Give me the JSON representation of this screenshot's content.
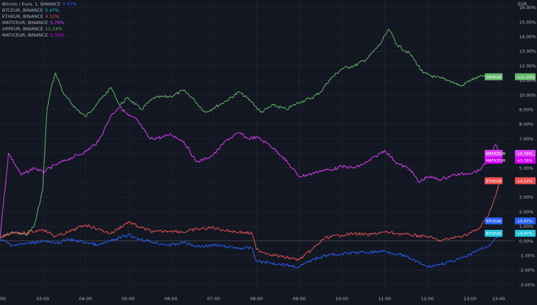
{
  "legend": [
    {
      "label": "Bitcoin / Euro, 1, BINANCE",
      "value": "0.47%",
      "color": "#2962ff"
    },
    {
      "label": "BTCEUR, BINANCE",
      "value": "0.47%",
      "color": "#26c6da"
    },
    {
      "label": "ETHEUR, BINANCE",
      "value": "4.12%",
      "color": "#ef5350"
    },
    {
      "label": "MATICEUR, BINANCE",
      "value": "5.76%",
      "color": "#e040fb"
    },
    {
      "label": "XRPEUR, BINANCE",
      "value": "11.24%",
      "color": "#66bb6a"
    },
    {
      "label": "MATICEUR, BINANCE",
      "value": "5.76%",
      "color": "#d500f9"
    }
  ],
  "currency_label": "EUR",
  "chart_data": {
    "type": "line",
    "y_unit": "%",
    "ylim": [
      -3.5,
      16.5
    ],
    "y_ticks": [
      "16.00%",
      "15.00%",
      "14.00%",
      "13.00%",
      "12.00%",
      "11.00%",
      "10.00%",
      "9.00%",
      "8.00%",
      "7.00%",
      "6.00%",
      "5.00%",
      "4.00%",
      "3.00%",
      "2.00%",
      "1.00%",
      "0.00%",
      "-1.00%",
      "-2.00%",
      "-3.00%"
    ],
    "y_tick_values": [
      16,
      15,
      14,
      13,
      12,
      11,
      10,
      9,
      8,
      7,
      6,
      5,
      4,
      3,
      2,
      1,
      0,
      -1,
      -2,
      -3
    ],
    "x_ticks": [
      "00",
      "03:00",
      "04:00",
      "05:00",
      "06:00",
      "07:00",
      "08:00",
      "09:00",
      "10:00",
      "11:00",
      "12:00",
      "13:00",
      "13:40"
    ],
    "x_tick_hours": [
      2.0,
      3.0,
      4.0,
      5.0,
      6.0,
      7.0,
      8.0,
      9.0,
      10.0,
      11.0,
      12.0,
      13.0,
      13.667
    ],
    "xlim": [
      2.0,
      14.05
    ],
    "grid": true,
    "series": [
      {
        "name": "XRPEUR",
        "color": "#66bb6a",
        "end_label": "XRPEUR",
        "end_value": "+11.24%",
        "x": [
          2.0,
          2.3,
          2.6,
          2.8,
          3.0,
          3.1,
          3.2,
          3.3,
          3.5,
          3.8,
          4.0,
          4.3,
          4.6,
          4.8,
          5.0,
          5.3,
          5.6,
          6.0,
          6.3,
          6.5,
          6.8,
          7.0,
          7.3,
          7.6,
          7.9,
          8.1,
          8.4,
          8.7,
          9.0,
          9.3,
          9.5,
          9.7,
          10.0,
          10.3,
          10.6,
          10.9,
          11.1,
          11.3,
          11.6,
          11.9,
          12.2,
          12.5,
          12.8,
          13.0,
          13.3,
          13.6,
          13.7
        ],
        "y": [
          0.2,
          0.6,
          0.4,
          1.0,
          3.5,
          9.0,
          10.5,
          11.5,
          10.0,
          9.0,
          8.5,
          9.5,
          10.5,
          9.3,
          9.8,
          9.0,
          9.8,
          9.9,
          10.3,
          9.8,
          8.8,
          9.1,
          9.6,
          10.2,
          9.5,
          8.8,
          9.3,
          9.0,
          9.5,
          9.8,
          10.2,
          11.0,
          11.8,
          12.0,
          12.5,
          13.5,
          14.5,
          13.4,
          12.8,
          11.5,
          11.2,
          11.0,
          10.6,
          11.0,
          11.3,
          11.4,
          11.24
        ]
      },
      {
        "name": "MATICEUR",
        "color": "#e040fb",
        "end_label": "MATICEUR",
        "end_value": "+5.76%",
        "x": [
          2.0,
          2.2,
          2.5,
          2.8,
          3.0,
          3.3,
          3.6,
          4.0,
          4.3,
          4.6,
          4.8,
          5.0,
          5.2,
          5.5,
          5.8,
          6.0,
          6.3,
          6.6,
          6.8,
          7.0,
          7.3,
          7.6,
          7.8,
          8.0,
          8.3,
          8.6,
          9.0,
          9.3,
          9.5,
          9.8,
          10.0,
          10.3,
          10.6,
          10.8,
          11.0,
          11.3,
          11.6,
          11.8,
          12.0,
          12.3,
          12.6,
          12.9,
          13.2,
          13.4,
          13.6,
          13.7
        ],
        "y": [
          0.2,
          6.0,
          4.5,
          5.0,
          4.7,
          5.2,
          5.6,
          6.1,
          6.8,
          8.6,
          9.2,
          8.6,
          8.3,
          7.0,
          7.1,
          7.3,
          6.8,
          5.4,
          5.6,
          5.9,
          6.9,
          7.4,
          7.0,
          7.1,
          6.6,
          5.8,
          4.4,
          4.6,
          4.8,
          4.9,
          5.1,
          5.0,
          5.4,
          5.8,
          6.2,
          5.3,
          4.9,
          4.0,
          4.4,
          4.2,
          4.5,
          4.6,
          4.8,
          5.4,
          6.6,
          5.76
        ]
      },
      {
        "name": "ETHEUR",
        "color": "#ef5350",
        "end_label": "ETHEUR",
        "end_value": "+4.12%",
        "x": [
          2.0,
          2.3,
          2.6,
          3.0,
          3.3,
          3.6,
          4.0,
          4.3,
          4.6,
          5.0,
          5.3,
          5.6,
          6.0,
          6.3,
          6.6,
          7.0,
          7.3,
          7.6,
          7.9,
          8.0,
          8.3,
          8.6,
          9.0,
          9.3,
          9.6,
          10.0,
          10.3,
          10.6,
          11.0,
          11.3,
          11.6,
          12.0,
          12.3,
          12.6,
          12.9,
          13.2,
          13.4,
          13.6,
          13.7
        ],
        "y": [
          0.2,
          0.6,
          0.5,
          0.8,
          0.3,
          0.6,
          1.1,
          0.8,
          0.5,
          1.3,
          0.9,
          0.6,
          0.7,
          0.6,
          0.8,
          0.9,
          0.7,
          0.6,
          0.5,
          -0.6,
          -0.9,
          -1.1,
          -1.3,
          -0.6,
          0.2,
          0.4,
          0.5,
          0.4,
          0.6,
          0.5,
          0.4,
          0.3,
          0.0,
          0.2,
          0.4,
          0.8,
          1.6,
          3.1,
          4.12
        ]
      },
      {
        "name": "BTCEUR",
        "color": "#2962ff",
        "end_label": "BTCEUR",
        "end_value": "+0.47%",
        "x": [
          2.0,
          2.3,
          2.6,
          3.0,
          3.3,
          3.6,
          4.0,
          4.3,
          4.6,
          5.0,
          5.3,
          5.6,
          6.0,
          6.3,
          6.6,
          7.0,
          7.3,
          7.6,
          7.9,
          8.0,
          8.3,
          8.6,
          9.0,
          9.3,
          9.6,
          10.0,
          10.3,
          10.6,
          11.0,
          11.3,
          11.6,
          12.0,
          12.3,
          12.6,
          12.9,
          13.2,
          13.4,
          13.6,
          13.7
        ],
        "y": [
          0.1,
          -0.3,
          -0.2,
          0.0,
          -0.2,
          0.1,
          -0.1,
          -0.3,
          0.0,
          0.4,
          0.1,
          -0.1,
          -0.3,
          -0.1,
          -0.4,
          -0.3,
          -0.4,
          -0.5,
          -0.5,
          -1.4,
          -1.5,
          -1.6,
          -1.8,
          -1.3,
          -1.0,
          -0.9,
          -0.8,
          -0.8,
          -0.7,
          -0.9,
          -1.2,
          -1.8,
          -1.6,
          -1.4,
          -1.1,
          -0.6,
          -0.4,
          0.2,
          0.47
        ]
      }
    ],
    "extra_tags": [
      {
        "end_label": "MATICEUR",
        "end_value": "+5.76%",
        "color": "#d500f9"
      },
      {
        "end_label": "BTCEUR",
        "end_value": "+0.47%",
        "color": "#26c6da"
      }
    ]
  }
}
